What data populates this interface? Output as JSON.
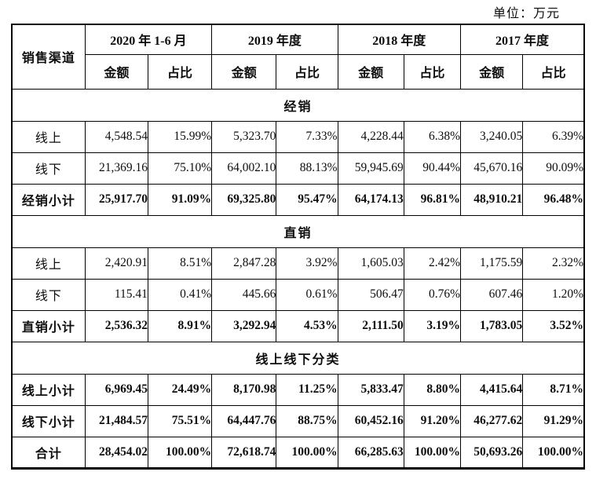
{
  "unit_label": "单位：万元",
  "table": {
    "channel_header": "销售渠道",
    "amount_header": "金额",
    "ratio_header": "占比",
    "periods": [
      "2020 年 1-6 月",
      "2019 年度",
      "2018 年度",
      "2017 年度"
    ],
    "sections": [
      {
        "title": "经销",
        "rows": [
          {
            "label": "线上",
            "bold": false,
            "values": [
              "4,548.54",
              "15.99%",
              "5,323.70",
              "7.33%",
              "4,228.44",
              "6.38%",
              "3,240.05",
              "6.39%"
            ]
          },
          {
            "label": "线下",
            "bold": false,
            "values": [
              "21,369.16",
              "75.10%",
              "64,002.10",
              "88.13%",
              "59,945.69",
              "90.44%",
              "45,670.16",
              "90.09%"
            ]
          },
          {
            "label": "经销小计",
            "bold": true,
            "values": [
              "25,917.70",
              "91.09%",
              "69,325.80",
              "95.47%",
              "64,174.13",
              "96.81%",
              "48,910.21",
              "96.48%"
            ]
          }
        ]
      },
      {
        "title": "直销",
        "rows": [
          {
            "label": "线上",
            "bold": false,
            "values": [
              "2,420.91",
              "8.51%",
              "2,847.28",
              "3.92%",
              "1,605.03",
              "2.42%",
              "1,175.59",
              "2.32%"
            ]
          },
          {
            "label": "线下",
            "bold": false,
            "values": [
              "115.41",
              "0.41%",
              "445.66",
              "0.61%",
              "506.47",
              "0.76%",
              "607.46",
              "1.20%"
            ]
          },
          {
            "label": "直销小计",
            "bold": true,
            "values": [
              "2,536.32",
              "8.91%",
              "3,292.94",
              "4.53%",
              "2,111.50",
              "3.19%",
              "1,783.05",
              "3.52%"
            ]
          }
        ]
      },
      {
        "title": "线上线下分类",
        "rows": [
          {
            "label": "线上小计",
            "bold": true,
            "values": [
              "6,969.45",
              "24.49%",
              "8,170.98",
              "11.25%",
              "5,833.47",
              "8.80%",
              "4,415.64",
              "8.71%"
            ]
          },
          {
            "label": "线下小计",
            "bold": true,
            "values": [
              "21,484.57",
              "75.51%",
              "64,447.76",
              "88.75%",
              "60,452.16",
              "91.20%",
              "46,277.62",
              "91.29%"
            ]
          },
          {
            "label": "合计",
            "bold": true,
            "values": [
              "28,454.02",
              "100.00%",
              "72,618.74",
              "100.00%",
              "66,285.63",
              "100.00%",
              "50,693.26",
              "100.00%"
            ]
          }
        ]
      }
    ]
  }
}
